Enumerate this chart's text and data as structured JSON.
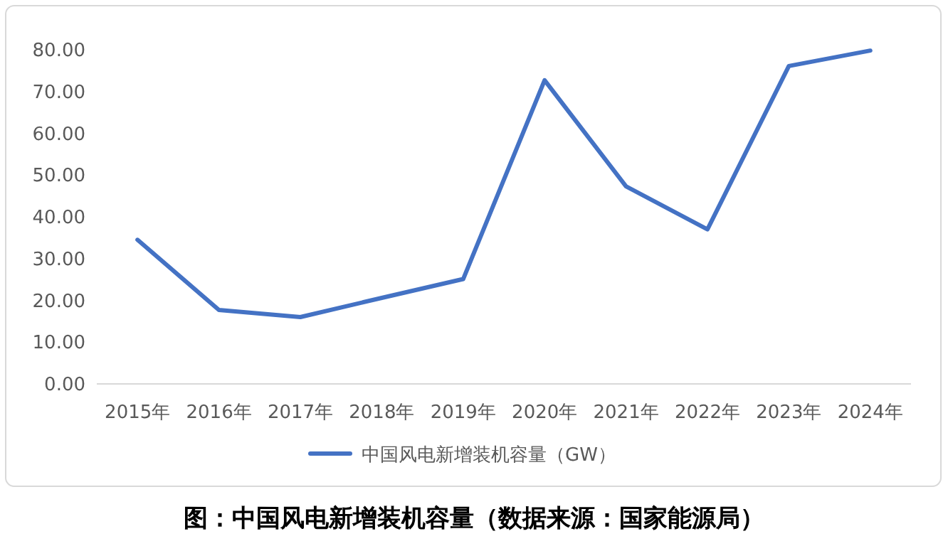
{
  "chart_data": {
    "type": "line",
    "categories": [
      "2015年",
      "2016年",
      "2017年",
      "2018年",
      "2019年",
      "2020年",
      "2021年",
      "2022年",
      "2023年",
      "2024年"
    ],
    "series": [
      {
        "name": "中国风电新增装机容量（GW）",
        "color": "#4472c4",
        "values": [
          34.5,
          17.7,
          16.0,
          20.6,
          25.1,
          72.7,
          47.3,
          37.0,
          76.1,
          79.8
        ]
      }
    ],
    "ylim": [
      0,
      80
    ],
    "yticks": [
      {
        "value": 0,
        "label": "0.00"
      },
      {
        "value": 10,
        "label": "10.00"
      },
      {
        "value": 20,
        "label": "20.00"
      },
      {
        "value": 30,
        "label": "30.00"
      },
      {
        "value": 40,
        "label": "40.00"
      },
      {
        "value": 50,
        "label": "50.00"
      },
      {
        "value": 60,
        "label": "60.00"
      },
      {
        "value": 70,
        "label": "70.00"
      },
      {
        "value": 80,
        "label": "80.00"
      }
    ],
    "grid": false,
    "legend": "bottom",
    "marker": "none",
    "line_style": "solid",
    "annotations": [
      "图：中国风电新增装机容量（数据来源：国家能源局）"
    ]
  }
}
